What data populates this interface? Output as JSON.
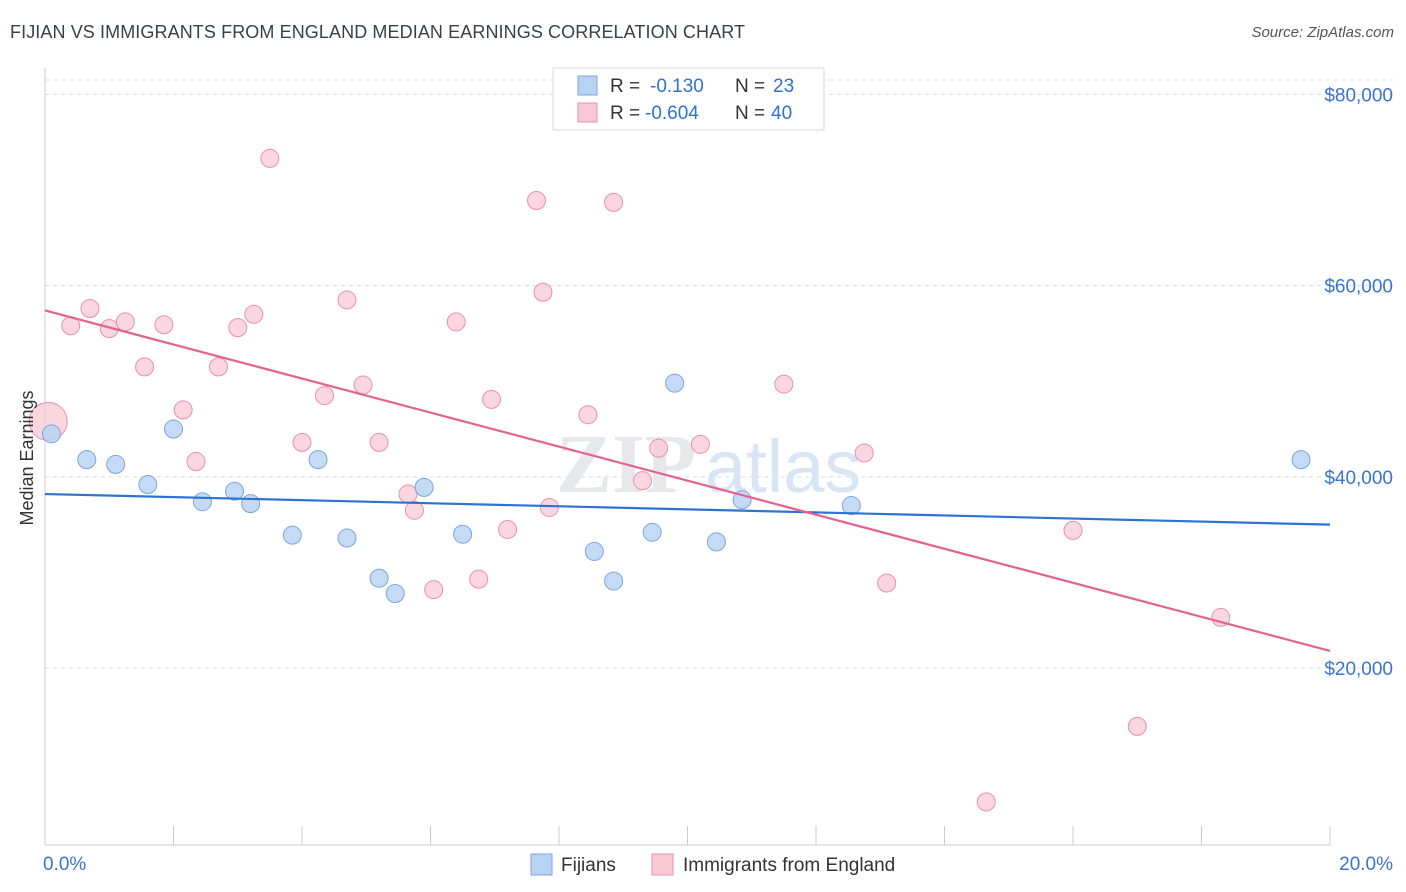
{
  "title": "FIJIAN VS IMMIGRANTS FROM ENGLAND MEDIAN EARNINGS CORRELATION CHART",
  "source": "Source: ZipAtlas.com",
  "watermark": {
    "zip": "ZIP",
    "atlas": "atlas"
  },
  "colors": {
    "blue_fill": "#b7d2f3",
    "blue_stroke": "#7aa6dc",
    "blue_line": "#2e72d2",
    "pink_fill": "#f8c8d7",
    "pink_stroke": "#ea8fae",
    "pink_line": "#e3638f",
    "tick_label": "#3a74cf",
    "grid": "#d8dce2"
  },
  "stats_legend": {
    "rows": [
      {
        "r_label": "R =",
        "r_value": "-0.130",
        "n_label": "N =",
        "n_value": "23",
        "series": "Fijians"
      },
      {
        "r_label": "R =",
        "r_value": "-0.604",
        "n_label": "N =",
        "n_value": "40",
        "series": "Immigrants from England"
      }
    ]
  },
  "bottom_legend": [
    "Fijians",
    "Immigrants from England"
  ],
  "chart_data": {
    "type": "scatter",
    "title": "FIJIAN VS IMMIGRANTS FROM ENGLAND MEDIAN EARNINGS CORRELATION CHART",
    "xlabel": "",
    "ylabel": "Median Earnings",
    "xlim": [
      0,
      20
    ],
    "ylim": [
      1500,
      81500
    ],
    "x_tick_labels": [
      "0.0%",
      "20.0%"
    ],
    "y_ticks": [
      20000,
      40000,
      60000,
      80000
    ],
    "y_tick_labels": [
      "$20,000",
      "$40,000",
      "$60,000",
      "$80,000"
    ],
    "grid": true,
    "legend_position": "top-center",
    "series": [
      {
        "name": "Fijians",
        "trend": {
          "x": [
            0,
            20
          ],
          "y": [
            38200,
            35000
          ]
        },
        "points": [
          {
            "x": 0.1,
            "y": 44500
          },
          {
            "x": 0.65,
            "y": 41800
          },
          {
            "x": 1.1,
            "y": 41300
          },
          {
            "x": 1.6,
            "y": 39200
          },
          {
            "x": 2.0,
            "y": 45000
          },
          {
            "x": 2.45,
            "y": 37400
          },
          {
            "x": 2.95,
            "y": 38500
          },
          {
            "x": 3.2,
            "y": 37200
          },
          {
            "x": 3.85,
            "y": 33900
          },
          {
            "x": 4.25,
            "y": 41800
          },
          {
            "x": 4.7,
            "y": 33600
          },
          {
            "x": 5.2,
            "y": 29400
          },
          {
            "x": 5.45,
            "y": 27800
          },
          {
            "x": 5.9,
            "y": 38900
          },
          {
            "x": 6.5,
            "y": 34000
          },
          {
            "x": 8.55,
            "y": 32200
          },
          {
            "x": 8.85,
            "y": 29100
          },
          {
            "x": 9.45,
            "y": 34200
          },
          {
            "x": 9.8,
            "y": 49800
          },
          {
            "x": 10.45,
            "y": 33200
          },
          {
            "x": 10.85,
            "y": 37600
          },
          {
            "x": 12.55,
            "y": 37000
          },
          {
            "x": 19.55,
            "y": 41800
          }
        ]
      },
      {
        "name": "Immigrants from England",
        "trend": {
          "x": [
            0,
            20
          ],
          "y": [
            57400,
            21800
          ]
        },
        "points": [
          {
            "x": 0.05,
            "y": 45800
          },
          {
            "x": 0.4,
            "y": 55800
          },
          {
            "x": 0.7,
            "y": 57600
          },
          {
            "x": 1.0,
            "y": 55500
          },
          {
            "x": 1.25,
            "y": 56200
          },
          {
            "x": 1.55,
            "y": 51500
          },
          {
            "x": 1.85,
            "y": 55900
          },
          {
            "x": 2.15,
            "y": 47000
          },
          {
            "x": 2.35,
            "y": 41600
          },
          {
            "x": 2.7,
            "y": 51500
          },
          {
            "x": 3.0,
            "y": 55600
          },
          {
            "x": 3.25,
            "y": 57000
          },
          {
            "x": 3.5,
            "y": 73300
          },
          {
            "x": 4.0,
            "y": 43600
          },
          {
            "x": 4.35,
            "y": 48500
          },
          {
            "x": 4.7,
            "y": 58500
          },
          {
            "x": 4.95,
            "y": 49600
          },
          {
            "x": 5.2,
            "y": 43600
          },
          {
            "x": 5.65,
            "y": 38200
          },
          {
            "x": 5.75,
            "y": 36500
          },
          {
            "x": 6.05,
            "y": 28200
          },
          {
            "x": 6.4,
            "y": 56200
          },
          {
            "x": 6.75,
            "y": 29300
          },
          {
            "x": 6.95,
            "y": 48100
          },
          {
            "x": 7.2,
            "y": 34500
          },
          {
            "x": 7.65,
            "y": 68900
          },
          {
            "x": 7.75,
            "y": 59300
          },
          {
            "x": 7.85,
            "y": 36800
          },
          {
            "x": 8.45,
            "y": 46500
          },
          {
            "x": 8.85,
            "y": 68700
          },
          {
            "x": 9.3,
            "y": 39600
          },
          {
            "x": 9.55,
            "y": 43000
          },
          {
            "x": 10.2,
            "y": 43400
          },
          {
            "x": 11.5,
            "y": 49700
          },
          {
            "x": 12.75,
            "y": 42500
          },
          {
            "x": 13.1,
            "y": 28900
          },
          {
            "x": 16.0,
            "y": 34400
          },
          {
            "x": 17.0,
            "y": 13900
          },
          {
            "x": 18.3,
            "y": 25300
          },
          {
            "x": 14.65,
            "y": 6000
          }
        ]
      }
    ]
  }
}
